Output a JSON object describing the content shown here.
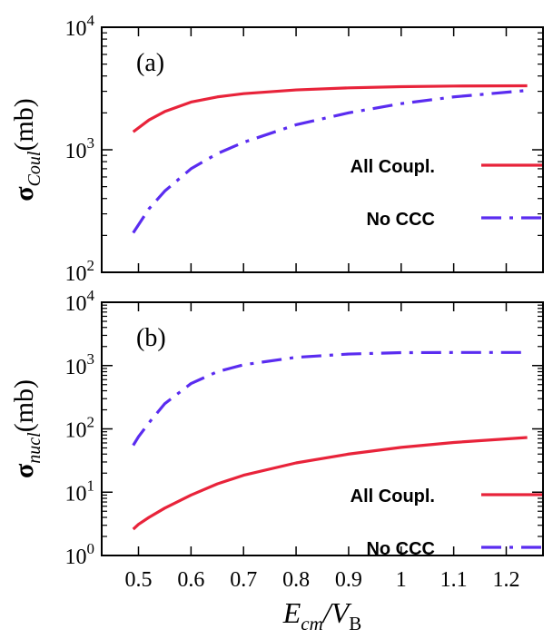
{
  "colors": {
    "all_couplings": "#e8233a",
    "no_ccc": "#5a2cf0",
    "frame": "#000000"
  },
  "chart_data": [
    {
      "type": "line",
      "panel_label": "(a)",
      "ylabel": {
        "prefix": "σ",
        "sub": "Coul",
        "suffix": "(mb)"
      },
      "yscale": "log",
      "ylim": [
        100,
        10000
      ],
      "xlim": [
        0.43,
        1.27
      ],
      "y_ticks": [
        {
          "value": 100,
          "base": "10",
          "exp": "2"
        },
        {
          "value": 1000,
          "base": "10",
          "exp": "3"
        },
        {
          "value": 10000,
          "base": "10",
          "exp": "4"
        }
      ],
      "legend_placement": "right",
      "series": [
        {
          "name": "All Coupl.",
          "style": "solid",
          "color": "#e8233a",
          "x": [
            0.49,
            0.52,
            0.55,
            0.6,
            0.65,
            0.7,
            0.8,
            0.9,
            1.0,
            1.1,
            1.24
          ],
          "y": [
            1400,
            1750,
            2050,
            2450,
            2700,
            2870,
            3080,
            3200,
            3270,
            3310,
            3330
          ]
        },
        {
          "name": "No CCC",
          "style": "dashdot",
          "color": "#5a2cf0",
          "x": [
            0.49,
            0.52,
            0.55,
            0.6,
            0.65,
            0.7,
            0.8,
            0.9,
            1.0,
            1.1,
            1.24
          ],
          "y": [
            210,
            330,
            460,
            700,
            930,
            1150,
            1600,
            2000,
            2380,
            2700,
            3050
          ]
        }
      ]
    },
    {
      "type": "line",
      "panel_label": "(b)",
      "ylabel": {
        "prefix": "σ",
        "sub": "nucl",
        "suffix": "(mb)"
      },
      "xlabel": {
        "main": "E",
        "sub": "cm",
        "slash": "/V",
        "sub2": "B"
      },
      "yscale": "log",
      "ylim": [
        1,
        10000
      ],
      "xlim": [
        0.43,
        1.27
      ],
      "y_ticks": [
        {
          "value": 1,
          "base": "10",
          "exp": "0"
        },
        {
          "value": 10,
          "base": "10",
          "exp": "1"
        },
        {
          "value": 100,
          "base": "10",
          "exp": "2"
        },
        {
          "value": 1000,
          "base": "10",
          "exp": "3"
        },
        {
          "value": 10000,
          "base": "10",
          "exp": "4"
        }
      ],
      "x_ticks": [
        "0.5",
        "0.6",
        "0.7",
        "0.8",
        "0.9",
        "1",
        "1.1",
        "1.2"
      ],
      "legend_placement": "right",
      "series": [
        {
          "name": "All Coupl.",
          "style": "solid",
          "color": "#e8233a",
          "x": [
            0.49,
            0.5,
            0.52,
            0.55,
            0.6,
            0.65,
            0.7,
            0.8,
            0.9,
            1.0,
            1.1,
            1.24
          ],
          "y": [
            2.6,
            3.1,
            4.0,
            5.6,
            9.0,
            13.5,
            18.5,
            29,
            40,
            51,
            61,
            73
          ]
        },
        {
          "name": "No CCC",
          "style": "dashdot",
          "color": "#5a2cf0",
          "x": [
            0.49,
            0.5,
            0.52,
            0.55,
            0.6,
            0.65,
            0.7,
            0.8,
            0.9,
            1.0,
            1.1,
            1.24
          ],
          "y": [
            55,
            75,
            125,
            250,
            520,
            800,
            1030,
            1350,
            1520,
            1600,
            1610,
            1610
          ]
        }
      ]
    }
  ]
}
